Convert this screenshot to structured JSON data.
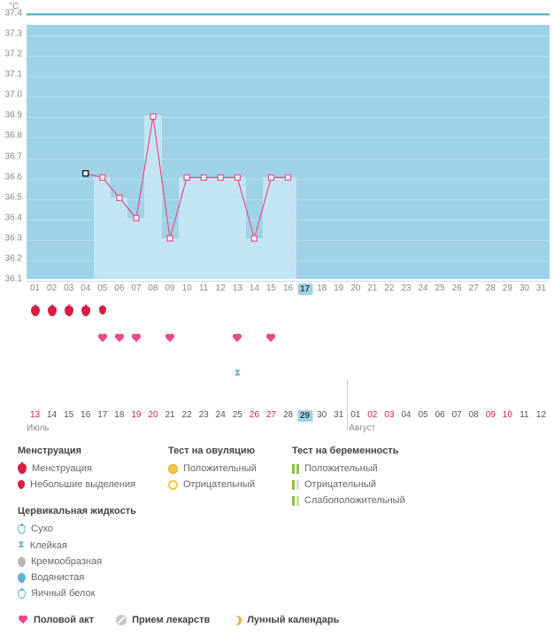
{
  "chart": {
    "y_unit": "°C",
    "y_ticks": [
      37.4,
      37.3,
      37.2,
      37.1,
      37.0,
      36.9,
      36.8,
      36.7,
      36.6,
      36.5,
      36.4,
      36.3,
      36.2,
      36.1
    ],
    "y_min": 36.1,
    "y_max": 37.4,
    "x_days": [
      "01",
      "02",
      "03",
      "04",
      "05",
      "06",
      "07",
      "08",
      "09",
      "10",
      "11",
      "12",
      "13",
      "14",
      "15",
      "16",
      "17",
      "18",
      "19",
      "20",
      "21",
      "22",
      "23",
      "24",
      "25",
      "26",
      "27",
      "28",
      "29",
      "30",
      "31"
    ],
    "x_highlight_index": 16,
    "points": [
      {
        "day_idx": 3,
        "temp": 36.62,
        "black": true
      },
      {
        "day_idx": 4,
        "temp": 36.6
      },
      {
        "day_idx": 5,
        "temp": 36.5
      },
      {
        "day_idx": 6,
        "temp": 36.4
      },
      {
        "day_idx": 7,
        "temp": 36.9
      },
      {
        "day_idx": 8,
        "temp": 36.3
      },
      {
        "day_idx": 9,
        "temp": 36.6
      },
      {
        "day_idx": 10,
        "temp": 36.6
      },
      {
        "day_idx": 11,
        "temp": 36.6
      },
      {
        "day_idx": 12,
        "temp": 36.6
      },
      {
        "day_idx": 13,
        "temp": 36.3
      },
      {
        "day_idx": 14,
        "temp": 36.6
      },
      {
        "day_idx": 15,
        "temp": 36.6
      }
    ],
    "bars_start_idx": 4,
    "bars_end_idx": 15,
    "background_color": "#9ed3e7",
    "bar_color": "#c9e8f4",
    "line_color": "#e84b8a",
    "marker_fill": "#ffffff",
    "marker_black": "#000000"
  },
  "drops": {
    "indices": [
      0,
      1,
      2,
      3
    ],
    "small_indices": [
      4
    ]
  },
  "hearts": {
    "indices": [
      4,
      5,
      6,
      8,
      12,
      14
    ]
  },
  "hourglass_idx": 24,
  "cal2": {
    "days": [
      {
        "label": "13",
        "red": true
      },
      {
        "label": "14"
      },
      {
        "label": "15"
      },
      {
        "label": "16"
      },
      {
        "label": "17"
      },
      {
        "label": "18"
      },
      {
        "label": "19",
        "red": true
      },
      {
        "label": "20",
        "red": true
      },
      {
        "label": "21"
      },
      {
        "label": "22"
      },
      {
        "label": "23"
      },
      {
        "label": "24"
      },
      {
        "label": "25"
      },
      {
        "label": "26",
        "red": true
      },
      {
        "label": "27",
        "red": true
      },
      {
        "label": "28"
      },
      {
        "label": "29",
        "hl": true
      },
      {
        "label": "30"
      },
      {
        "label": "31"
      },
      {
        "label": "01"
      },
      {
        "label": "02",
        "red": true
      },
      {
        "label": "03",
        "red": true
      },
      {
        "label": "04"
      },
      {
        "label": "05"
      },
      {
        "label": "06"
      },
      {
        "label": "07"
      },
      {
        "label": "08"
      },
      {
        "label": "09",
        "red": true
      },
      {
        "label": "10",
        "red": true
      },
      {
        "label": "11"
      },
      {
        "label": "12"
      }
    ],
    "month1": "Июль",
    "month2": "Август",
    "month2_start_idx": 19
  },
  "legend": {
    "menstruation": {
      "header": "Менструация",
      "item1": "Менструация",
      "item2": "Небольшие выделения"
    },
    "ovulation": {
      "header": "Тест на овуляцию",
      "pos": "Положительный",
      "neg": "Отрицательный"
    },
    "pregnancy": {
      "header": "Тест на беременность",
      "pos": "Положительный",
      "neg": "Отрицательный",
      "weak": "Слабоположительный"
    },
    "cervical": {
      "header": "Цервикальная жидкость",
      "dry": "Сухо",
      "sticky": "Клейкая",
      "creamy": "Кремообразная",
      "watery": "Водянистая",
      "egg": "Яичный белок"
    },
    "row2": {
      "sex": "Половой акт",
      "meds": "Прием лекарств",
      "lunar": "Лунный календарь"
    }
  }
}
